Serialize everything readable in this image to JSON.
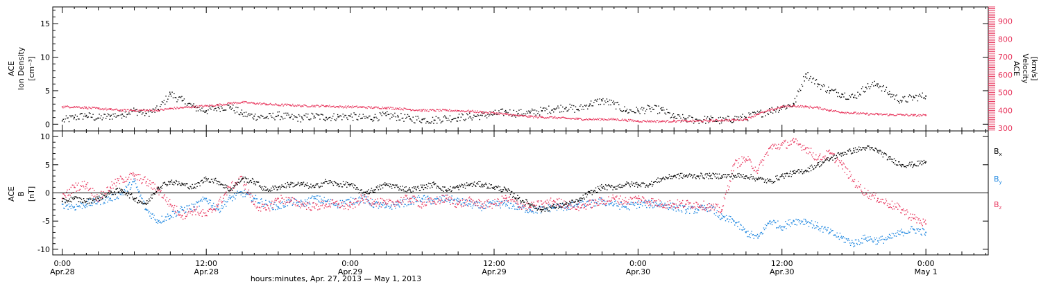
{
  "colors": {
    "black": "#000000",
    "red": "#e8375e",
    "blue": "#1c86e0"
  },
  "time_axis": {
    "xlabel": "hours:minutes, Apr. 27, 2013 — May  1, 2013",
    "ticks": [
      {
        "t": 0,
        "time": "0:00",
        "date": "Apr.28"
      },
      {
        "t": 12,
        "time": "12:00",
        "date": "Apr.28"
      },
      {
        "t": 24,
        "time": "0:00",
        "date": "Apr.29"
      },
      {
        "t": 36,
        "time": "12:00",
        "date": "Apr.29"
      },
      {
        "t": 48,
        "time": "0:00",
        "date": "Apr.30"
      },
      {
        "t": 60,
        "time": "12:00",
        "date": "Apr.30"
      },
      {
        "t": 72,
        "time": "0:00",
        "date": "May 1"
      }
    ]
  },
  "chart_data": [
    {
      "type": "scatter",
      "panel": "top",
      "ylabel": "ACE Ion Density [cm⁻³]",
      "ylabel_lines": [
        "ACE",
        "Ion Density",
        "[cm⁻³]"
      ],
      "ylim": [
        -1,
        17.5
      ],
      "yticks": [
        0,
        5,
        10,
        15
      ],
      "y2label": "ACE Velocity [km/s]",
      "y2label_lines": [
        "ACE",
        "Velocity",
        "[km/s]"
      ],
      "y2lim": [
        285,
        980
      ],
      "y2ticks": [
        300,
        400,
        500,
        600,
        700,
        800,
        900
      ],
      "xlim": [
        -0.8,
        77.2
      ],
      "series": [
        {
          "axis": "left",
          "color": "black",
          "x": [
            0,
            1,
            2,
            3,
            4,
            5,
            6,
            7,
            8,
            9,
            10,
            11,
            12,
            13,
            14,
            15,
            16,
            17,
            18,
            19,
            20,
            21,
            22,
            23,
            24,
            25,
            26,
            27,
            28,
            29,
            30,
            31,
            32,
            33,
            34,
            35,
            36,
            37,
            38,
            39,
            40,
            41,
            42,
            43,
            44,
            45,
            46,
            47,
            48,
            49,
            50,
            51,
            52,
            53,
            54,
            55,
            56,
            57,
            58,
            59,
            60,
            61,
            62,
            63,
            64,
            65,
            66,
            67,
            68,
            69,
            70,
            71,
            72
          ],
          "y": [
            0.5,
            1.0,
            1.3,
            0.9,
            1.2,
            1.5,
            2.0,
            1.6,
            2.2,
            4.5,
            3.5,
            2.5,
            2.0,
            2.5,
            2.6,
            1.5,
            1.2,
            1.0,
            1.3,
            1.0,
            0.9,
            1.2,
            1.0,
            1.1,
            1.2,
            0.9,
            1.0,
            1.3,
            1.1,
            0.8,
            0.7,
            0.6,
            0.9,
            1.0,
            1.1,
            1.3,
            1.5,
            1.8,
            1.6,
            1.7,
            2.0,
            2.3,
            2.5,
            2.2,
            3.0,
            3.5,
            3.0,
            2.0,
            2.0,
            2.3,
            2.1,
            1.0,
            0.8,
            0.6,
            0.7,
            0.5,
            0.8,
            1.0,
            1.5,
            2.0,
            2.5,
            3.0,
            7.5,
            6.0,
            5.0,
            4.5,
            4.0,
            5.5,
            6.0,
            4.5,
            3.5,
            4.0,
            4.2
          ]
        },
        {
          "axis": "right",
          "color": "red",
          "x": [
            0,
            1,
            2,
            3,
            4,
            5,
            6,
            7,
            8,
            9,
            10,
            11,
            12,
            13,
            14,
            15,
            16,
            17,
            18,
            19,
            20,
            21,
            22,
            23,
            24,
            25,
            26,
            27,
            28,
            29,
            30,
            31,
            32,
            33,
            34,
            35,
            36,
            37,
            38,
            39,
            40,
            41,
            42,
            43,
            44,
            45,
            46,
            47,
            48,
            49,
            50,
            51,
            52,
            53,
            54,
            55,
            56,
            57,
            58,
            59,
            60,
            61,
            62,
            63,
            64,
            65,
            66,
            67,
            68,
            69,
            70,
            71,
            72
          ],
          "y": [
            420,
            420,
            415,
            410,
            405,
            400,
            400,
            400,
            400,
            410,
            415,
            420,
            425,
            430,
            440,
            445,
            440,
            435,
            430,
            430,
            425,
            425,
            425,
            420,
            420,
            418,
            415,
            415,
            410,
            405,
            400,
            400,
            400,
            398,
            395,
            390,
            385,
            378,
            370,
            365,
            362,
            360,
            355,
            352,
            350,
            350,
            350,
            345,
            340,
            340,
            338,
            340,
            340,
            340,
            342,
            345,
            345,
            350,
            380,
            400,
            420,
            425,
            420,
            415,
            400,
            390,
            385,
            380,
            378,
            375,
            375,
            372,
            372
          ]
        }
      ]
    },
    {
      "type": "scatter",
      "panel": "bottom",
      "ylabel": "ACE B [nT]",
      "ylabel_lines": [
        "ACE",
        "B",
        "[nT]"
      ],
      "ylim": [
        -11,
        11
      ],
      "yticks": [
        -10,
        -5,
        0,
        5,
        10
      ],
      "xlim": [
        -0.8,
        77.2
      ],
      "legend": [
        {
          "label": "B",
          "sub": "x",
          "color": "black"
        },
        {
          "label": "B",
          "sub": "y",
          "color": "blue"
        },
        {
          "label": "B",
          "sub": "z",
          "color": "red"
        }
      ],
      "series": [
        {
          "name": "Bx",
          "color": "black",
          "x": [
            0,
            1,
            2,
            3,
            4,
            5,
            6,
            7,
            8,
            9,
            10,
            11,
            12,
            13,
            14,
            15,
            16,
            17,
            18,
            19,
            20,
            21,
            22,
            23,
            24,
            25,
            26,
            27,
            28,
            29,
            30,
            31,
            32,
            33,
            34,
            35,
            36,
            37,
            38,
            39,
            40,
            41,
            42,
            43,
            44,
            45,
            46,
            47,
            48,
            49,
            50,
            51,
            52,
            53,
            54,
            55,
            56,
            57,
            58,
            59,
            60,
            61,
            62,
            63,
            64,
            65,
            66,
            67,
            68,
            69,
            70,
            71,
            72
          ],
          "y": [
            -1.5,
            -1.0,
            -1.5,
            -1.0,
            0.0,
            0.5,
            -1.0,
            -2.0,
            1.0,
            2.0,
            1.5,
            1.0,
            2.5,
            2.0,
            0.5,
            2.5,
            2.0,
            0.5,
            1.0,
            1.5,
            1.5,
            1.0,
            2.0,
            1.5,
            1.5,
            0.0,
            0.5,
            1.5,
            1.0,
            0.5,
            1.0,
            1.5,
            0.5,
            1.0,
            1.5,
            1.5,
            1.0,
            0.5,
            -1.0,
            -2.0,
            -3.0,
            -2.5,
            -2.0,
            -1.5,
            0.0,
            1.0,
            1.0,
            1.5,
            1.5,
            1.5,
            2.5,
            3.0,
            3.0,
            3.0,
            3.0,
            3.0,
            3.0,
            3.0,
            2.5,
            2.0,
            3.0,
            3.5,
            4.0,
            5.0,
            6.0,
            7.0,
            7.5,
            8.0,
            7.5,
            6.0,
            5.0,
            5.0,
            5.5
          ]
        },
        {
          "name": "By",
          "color": "blue",
          "x": [
            0,
            1,
            2,
            3,
            4,
            5,
            6,
            7,
            8,
            9,
            10,
            11,
            12,
            13,
            14,
            15,
            16,
            17,
            18,
            19,
            20,
            21,
            22,
            23,
            24,
            25,
            26,
            27,
            28,
            29,
            30,
            31,
            32,
            33,
            34,
            35,
            36,
            37,
            38,
            39,
            40,
            41,
            42,
            43,
            44,
            45,
            46,
            47,
            48,
            49,
            50,
            51,
            52,
            53,
            54,
            55,
            56,
            57,
            58,
            59,
            60,
            61,
            62,
            63,
            64,
            65,
            66,
            67,
            68,
            69,
            70,
            71,
            72
          ],
          "y": [
            -2.0,
            -2.5,
            -2.0,
            -1.5,
            -1.0,
            0.0,
            2.0,
            -3.0,
            -5.0,
            -4.0,
            -3.0,
            -2.5,
            -1.0,
            -3.0,
            -1.0,
            0.0,
            -1.0,
            -2.0,
            -2.5,
            -1.5,
            -2.0,
            -1.0,
            -1.5,
            -2.0,
            -1.5,
            -1.0,
            -2.0,
            -2.5,
            -2.0,
            -1.5,
            -1.0,
            -1.5,
            -1.0,
            -1.5,
            -2.0,
            -2.5,
            -2.0,
            -2.0,
            -2.5,
            -3.0,
            -3.0,
            -2.5,
            -2.5,
            -2.0,
            -2.0,
            -1.5,
            -2.0,
            -2.5,
            -2.0,
            -2.0,
            -2.0,
            -2.5,
            -3.0,
            -3.0,
            -2.5,
            -4.5,
            -5.0,
            -7.0,
            -8.0,
            -5.0,
            -6.0,
            -5.0,
            -5.0,
            -6.0,
            -7.0,
            -8.0,
            -9.0,
            -8.0,
            -8.5,
            -8.0,
            -7.0,
            -6.5,
            -7.0
          ]
        },
        {
          "name": "Bz",
          "color": "red",
          "x": [
            0,
            1,
            2,
            3,
            4,
            5,
            6,
            7,
            8,
            9,
            10,
            11,
            12,
            13,
            14,
            15,
            16,
            17,
            18,
            19,
            20,
            21,
            22,
            23,
            24,
            25,
            26,
            27,
            28,
            29,
            30,
            31,
            32,
            33,
            34,
            35,
            36,
            37,
            38,
            39,
            40,
            41,
            42,
            43,
            44,
            45,
            46,
            47,
            48,
            49,
            50,
            51,
            52,
            53,
            54,
            55,
            56,
            57,
            58,
            59,
            60,
            61,
            62,
            63,
            64,
            65,
            66,
            67,
            68,
            69,
            70,
            71,
            72
          ],
          "y": [
            -1.0,
            1.0,
            1.5,
            -1.0,
            1.0,
            2.5,
            3.0,
            2.0,
            0.5,
            -2.0,
            -4.0,
            -3.0,
            -4.0,
            -2.0,
            1.0,
            2.5,
            -2.0,
            -3.0,
            -1.0,
            -1.5,
            -2.0,
            -2.5,
            -2.0,
            -2.0,
            -2.5,
            -1.0,
            -1.5,
            -2.0,
            -1.5,
            -1.0,
            -2.0,
            -1.5,
            -1.0,
            -2.0,
            -1.5,
            -2.0,
            -2.0,
            -1.0,
            -2.0,
            -2.5,
            -2.0,
            -1.5,
            -2.0,
            -2.5,
            -2.0,
            -1.5,
            -1.0,
            -1.5,
            -1.0,
            -1.5,
            -2.0,
            -2.0,
            -2.0,
            -2.0,
            -2.5,
            -3.0,
            5.0,
            6.0,
            4.0,
            8.0,
            8.5,
            9.0,
            8.0,
            6.0,
            7.0,
            5.0,
            2.0,
            0.0,
            -1.0,
            -2.0,
            -3.0,
            -4.5,
            -5.5
          ]
        }
      ]
    }
  ]
}
